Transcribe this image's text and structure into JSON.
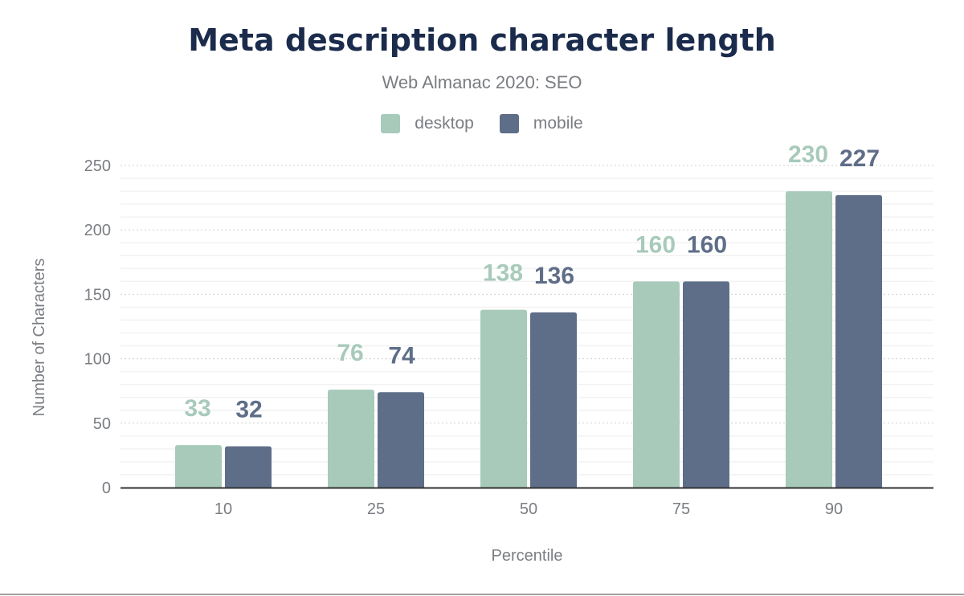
{
  "chart_data": {
    "type": "bar",
    "title": "Meta description character length",
    "subtitle": "Web Almanac 2020: SEO",
    "xlabel": "Percentile",
    "ylabel": "Number of Characters",
    "categories": [
      "10",
      "25",
      "50",
      "75",
      "90"
    ],
    "series": [
      {
        "name": "desktop",
        "color": "#a8cabb",
        "values": [
          33,
          76,
          138,
          160,
          230
        ]
      },
      {
        "name": "mobile",
        "color": "#5f6e88",
        "values": [
          32,
          74,
          136,
          160,
          227
        ]
      }
    ],
    "ylim": [
      0,
      250
    ],
    "yticks": [
      0,
      50,
      100,
      150,
      200,
      250
    ],
    "grid": true,
    "legend": "top",
    "data_labels": true
  }
}
